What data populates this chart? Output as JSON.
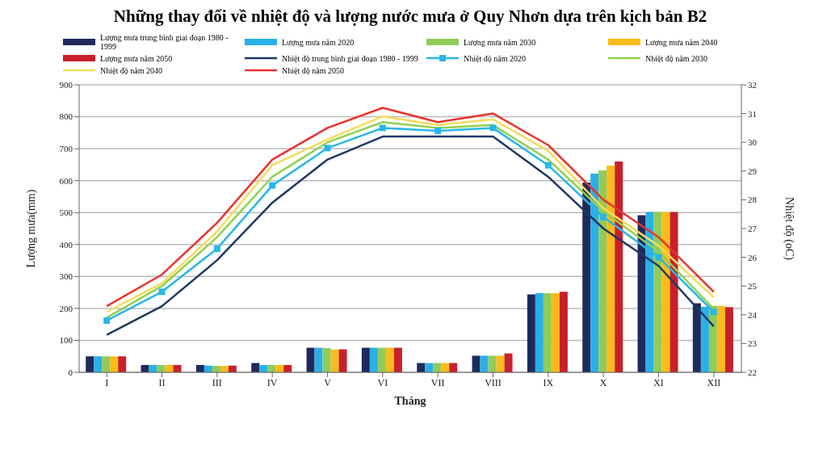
{
  "chart_data": {
    "type": "bar",
    "title": "Những thay đổi về nhiệt độ và lượng nước mưa ở Quy Nhơn dựa trên kịch bản B2",
    "xlabel": "Tháng",
    "ylabel": "Lượng mưa(mm)",
    "y2label": "Nhiệt độ  (oC)",
    "categories": [
      "I",
      "II",
      "III",
      "IV",
      "V",
      "VI",
      "VII",
      "VIII",
      "IX",
      "X",
      "XI",
      "XII"
    ],
    "series": [
      {
        "name": "Lượng mưa trung bình giai đoạn 1980 - 1999",
        "color": "#1f2a5c",
        "values": [
          50,
          23,
          23,
          29,
          77,
          77,
          29,
          52,
          244,
          594,
          492,
          216
        ]
      },
      {
        "name": "Lượng mưa năm 2020",
        "color": "#29b0e8",
        "values": [
          50,
          23,
          21,
          23,
          77,
          77,
          29,
          52,
          248,
          622,
          502,
          205
        ]
      },
      {
        "name": "Lượng mưa năm 2030",
        "color": "#8fcc5a",
        "values": [
          50,
          23,
          20,
          23,
          76,
          77,
          29,
          52,
          248,
          632,
          502,
          208
        ]
      },
      {
        "name": "Lượng mưa năm 2040",
        "color": "#fbbb1a",
        "values": [
          50,
          23,
          20,
          23,
          71,
          77,
          29,
          52,
          248,
          647,
          502,
          208
        ]
      },
      {
        "name": "Lượng mưa năm 2050",
        "color": "#c8202a",
        "values": [
          50,
          23,
          21,
          23,
          72,
          77,
          29,
          59,
          252,
          660,
          502,
          204
        ]
      },
      {
        "name": "Nhiệt độ trung bình giai đoạn 1980 - 1999",
        "type": "line",
        "axis": "y2",
        "color": "#1f3864",
        "values": [
          23.3,
          24.3,
          25.9,
          27.9,
          29.4,
          30.2,
          30.2,
          30.2,
          28.8,
          27.0,
          25.7,
          23.6
        ]
      },
      {
        "name": "Nhiệt độ năm 2020",
        "type": "line",
        "axis": "y2",
        "marker": "square",
        "color": "#29b6e8",
        "values": [
          23.8,
          24.8,
          26.3,
          28.5,
          29.8,
          30.5,
          30.4,
          30.5,
          29.2,
          27.4,
          26.0,
          24.1
        ]
      },
      {
        "name": "Nhiệt độ năm 2030",
        "type": "line",
        "axis": "y2",
        "color": "#92d050",
        "values": [
          23.9,
          25.0,
          26.7,
          28.8,
          30.0,
          30.7,
          30.5,
          30.6,
          29.4,
          27.6,
          26.2,
          24.2
        ]
      },
      {
        "name": "Nhiệt độ năm 2040",
        "type": "line",
        "axis": "y2",
        "color": "#f5dc5a",
        "values": [
          24.1,
          25.1,
          26.9,
          29.2,
          30.1,
          30.9,
          30.6,
          30.8,
          29.7,
          27.7,
          26.4,
          24.6
        ]
      },
      {
        "name": "Nhiệt độ năm 2050",
        "type": "line",
        "axis": "y2",
        "color": "#e8342e",
        "values": [
          24.3,
          25.4,
          27.2,
          29.4,
          30.5,
          31.2,
          30.7,
          31.0,
          29.9,
          28.0,
          26.7,
          24.8
        ]
      }
    ],
    "ylim": [
      0,
      900
    ],
    "yticks": [
      0,
      100,
      200,
      300,
      400,
      500,
      600,
      700,
      800,
      900
    ],
    "y2lim": [
      22,
      32
    ],
    "y2ticks": [
      22,
      23,
      24,
      25,
      26,
      27,
      28,
      29,
      30,
      31,
      32
    ],
    "grid": "y",
    "legend": "top",
    "marker": "none",
    "line_style": "solid"
  }
}
